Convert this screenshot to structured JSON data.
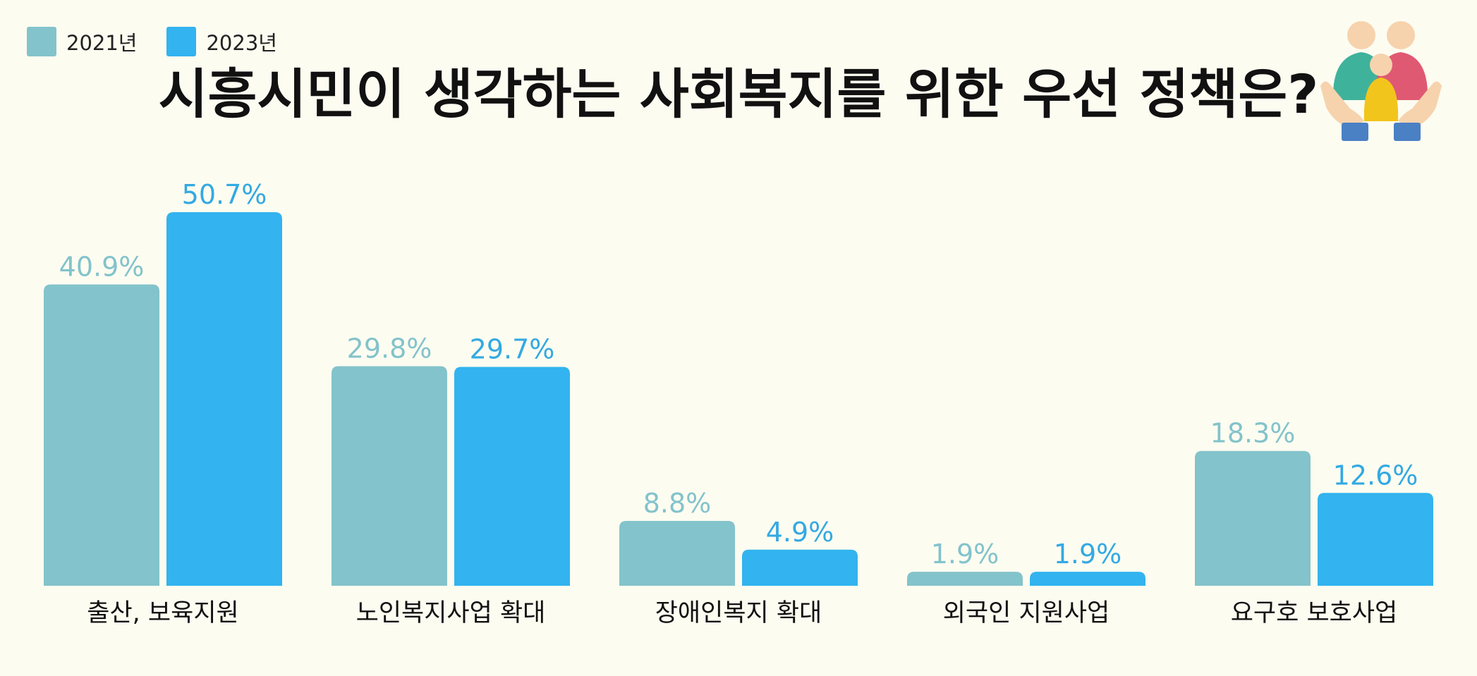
{
  "chart_data": {
    "type": "bar",
    "title": "시흥시민이 생각하는 사회복지를 위한 우선 정책은?",
    "xlabel": "",
    "ylabel": "",
    "categories": [
      "출산, 보육지원",
      "노인복지사업 확대",
      "장애인복지 확대",
      "외국인 지원사업",
      "요구호 보호사업"
    ],
    "series": [
      {
        "name": "2021년",
        "values": [
          40.9,
          29.8,
          8.8,
          1.9,
          18.3
        ],
        "labels": [
          "40.9%",
          "29.8%",
          "8.8%",
          "1.9%",
          "18.3%"
        ],
        "color": "#83c3cb",
        "label_color": "#83c3cb"
      },
      {
        "name": "2023년",
        "values": [
          50.7,
          29.7,
          4.9,
          1.9,
          12.6
        ],
        "labels": [
          "50.7%",
          "29.7%",
          "4.9%",
          "1.9%",
          "12.6%"
        ],
        "color": "#33b3ef",
        "label_color": "#33a9e3"
      }
    ],
    "ylim": [
      0,
      55
    ],
    "grid": false,
    "legend_position": "top-left"
  },
  "icon": "family-care-icon",
  "background_color": "#fdfcf1"
}
